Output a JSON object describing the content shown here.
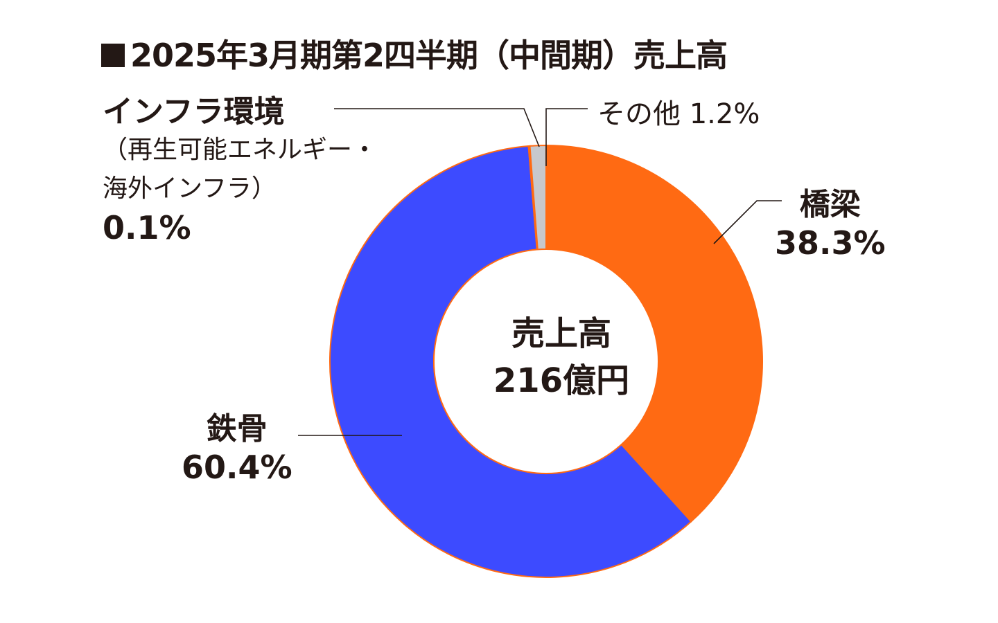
{
  "title": "2025年3月期第2四半期（中間期）売上高",
  "center": {
    "label": "売上高",
    "value": "216億円"
  },
  "labels": {
    "bridge_name": "橋梁",
    "bridge_pct": "38.3%",
    "steel_name": "鉄骨",
    "steel_pct": "60.4%",
    "infra_name": "インフラ環境",
    "infra_note_line1": "（再生可能エネルギー・",
    "infra_note_line2": "海外インフラ）",
    "infra_pct": "0.1%",
    "other": "その他 1.2%"
  },
  "chart_data": {
    "type": "pie",
    "variant": "donut",
    "title": "2025年3月期第2四半期（中間期）売上高",
    "total_label": "売上高",
    "total_value": "216億円",
    "order": "clockwise from top",
    "categories": [
      "橋梁",
      "鉄骨",
      "インフラ環境（再生可能エネルギー・海外インフラ）",
      "その他"
    ],
    "values": [
      38.3,
      60.4,
      0.1,
      1.2
    ],
    "unit": "%",
    "colors": [
      "#FF6A13",
      "#3D4BFF",
      "#FF6A13",
      "#C7C8CC"
    ],
    "outline_color": "#FF6A13"
  }
}
